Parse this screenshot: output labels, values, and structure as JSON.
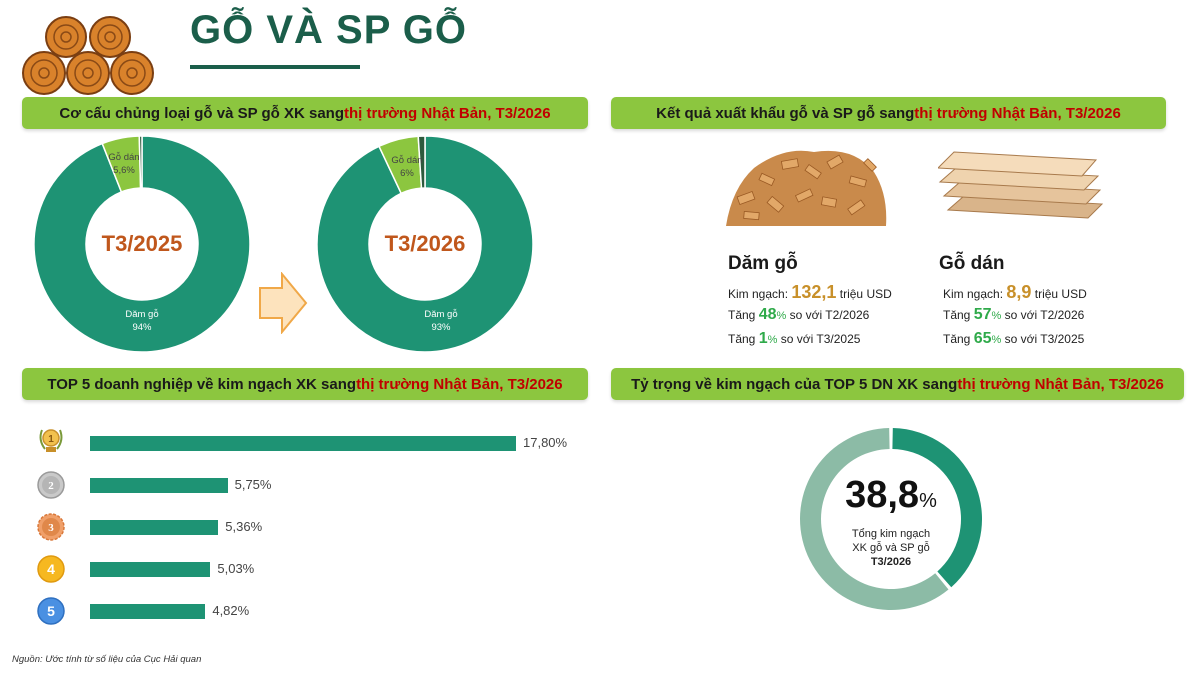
{
  "header": {
    "title": "GỖ VÀ SP GỖ",
    "icon": "wood-logs-icon"
  },
  "sections": {
    "structure": {
      "pre": "Cơ cấu chủng loại gỗ và SP gỗ XK sang ",
      "hl": "thị trường Nhật Bản, T3/2026"
    },
    "results": {
      "pre": "Kết quả xuất khẩu gỗ và SP gỗ sang ",
      "hl": "thị trường Nhật Bản, T3/2026"
    },
    "top5": {
      "pre": "TOP 5 doanh nghiệp về kim ngạch XK sang ",
      "hl": "thị trường Nhật Bản, T3/2026"
    },
    "share": {
      "pre": "Tỷ trọng về kim ngạch của TOP 5 DN XK sang ",
      "hl": "thị trường Nhật Bản, T3/2026"
    }
  },
  "products": [
    {
      "name": "Dăm gỗ",
      "kn_label": "Kim ngạch:",
      "kn_value": "132,1",
      "kn_unit": "triệu USD",
      "inc_label": "Tăng",
      "mom_value": "48",
      "mom_text": "so với T2/2026",
      "yoy_value": "1",
      "yoy_text": "so với T3/2025",
      "image": "wood-chips-image"
    },
    {
      "name": "Gỗ dán",
      "kn_label": "Kim ngạch:",
      "kn_value": "8,9",
      "kn_unit": "triệu USD",
      "inc_label": "Tăng",
      "mom_value": "57",
      "mom_text": "so với T2/2026",
      "yoy_value": "65",
      "yoy_text": "so với T3/2025",
      "image": "plywood-image"
    }
  ],
  "pct_sign": "%",
  "share_donut": {
    "value": "38,8",
    "pct": "%",
    "line1": "Tổng kim ngạch",
    "line2": "XK gỗ và SP gỗ",
    "line3": "T3/2026",
    "fraction": 0.388
  },
  "source": "Nguồn: Ước tính từ số liệu của Cục Hải quan",
  "colors": {
    "accent_green": "#8cc63f",
    "donut_main": "#1e9374",
    "donut_light": "#8cc63f",
    "highlight_red": "#c00000",
    "period_orange": "#c0571c"
  },
  "chart_data": [
    {
      "type": "pie",
      "center_label": "T3/2025",
      "slices": [
        {
          "name": "Dăm gỗ",
          "value": 94,
          "label": "94%"
        },
        {
          "name": "Gỗ dán",
          "value": 5.6,
          "label": "5,6%"
        },
        {
          "name": "",
          "value": 0.4,
          "label": ""
        }
      ]
    },
    {
      "type": "pie",
      "center_label": "T3/2026",
      "slices": [
        {
          "name": "Dăm gỗ",
          "value": 93,
          "label": "93%"
        },
        {
          "name": "Gỗ dán",
          "value": 6,
          "label": "6%"
        },
        {
          "name": "",
          "value": 1,
          "label": ""
        }
      ]
    },
    {
      "type": "bar",
      "orientation": "horizontal",
      "categories": [
        "1",
        "2",
        "3",
        "4",
        "5"
      ],
      "values": [
        17.8,
        5.75,
        5.36,
        5.03,
        4.82
      ],
      "value_labels": [
        "17,80%",
        "5,75%",
        "5,36%",
        "5,03%",
        "4,82%"
      ],
      "rank_icons": [
        "gold-medal-icon",
        "silver-medal-icon",
        "bronze-medal-icon",
        "rank-4-icon",
        "rank-5-icon"
      ],
      "xlim": [
        0,
        17.8
      ]
    }
  ]
}
